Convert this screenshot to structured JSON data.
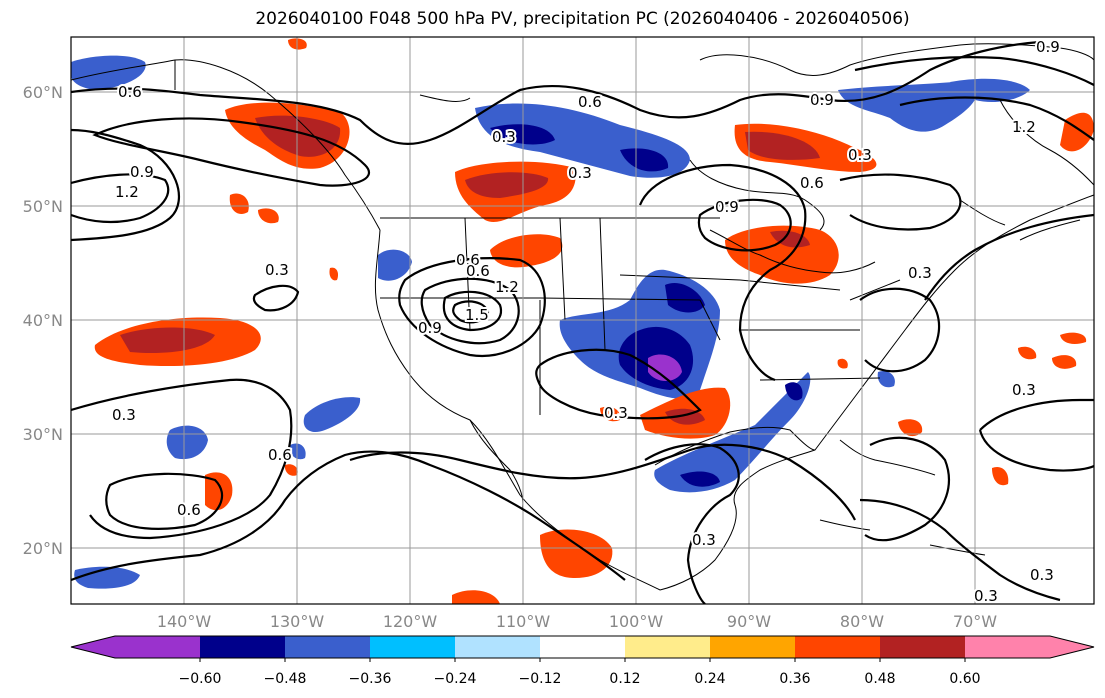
{
  "title": "2026040100 F048 500 hPa PV, precipitation PC (2026040406 - 2026040506)",
  "axes": {
    "lat_ticks": [
      "60°N",
      "50°N",
      "40°N",
      "30°N",
      "20°N"
    ],
    "lon_ticks": [
      "140°W",
      "130°W",
      "120°W",
      "110°W",
      "100°W",
      "90°W",
      "80°W",
      "70°W"
    ]
  },
  "colorbar": {
    "tick_labels": [
      "−0.60",
      "−0.48",
      "−0.36",
      "−0.24",
      "−0.12",
      "0.12",
      "0.24",
      "0.36",
      "0.48",
      "0.60"
    ],
    "colors": [
      "#9a32cd",
      "#00008b",
      "#3a5fcd",
      "#00bfff",
      "#b0e2ff",
      "#ffffff",
      "#ffec8b",
      "#ffa500",
      "#ff4500",
      "#b22222",
      "#ff82ab"
    ]
  },
  "contour_labels": [
    "0.6",
    "0.3",
    "0.6",
    "0.9",
    "0.9",
    "1.2",
    "0.9",
    "0.6",
    "0.9",
    "1.2",
    "0.6",
    "0.3",
    "0.6",
    "1.2",
    "1.5",
    "0.9",
    "0.3",
    "0.3",
    "0.3",
    "0.6",
    "0.3",
    "0.6",
    "0.3",
    "0.3",
    "0.3",
    "0.3",
    "0.3"
  ]
}
